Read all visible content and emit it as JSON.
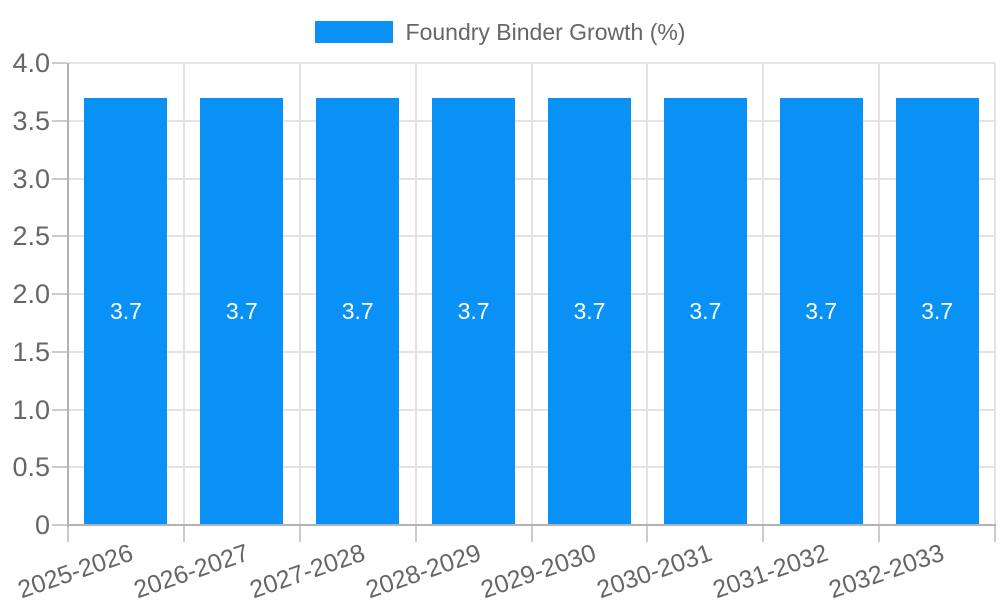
{
  "legend": {
    "label": "Foundry Binder Growth (%)"
  },
  "chart_data": {
    "type": "bar",
    "title": "Foundry Binder Growth (%)",
    "xlabel": "",
    "ylabel": "",
    "categories": [
      "2025-2026",
      "2026-2027",
      "2027-2028",
      "2028-2029",
      "2029-2030",
      "2030-2031",
      "2031-2032",
      "2032-2033"
    ],
    "series": [
      {
        "name": "Foundry Binder Growth (%)",
        "values": [
          3.7,
          3.7,
          3.7,
          3.7,
          3.7,
          3.7,
          3.7,
          3.7
        ]
      }
    ],
    "value_labels": [
      "3.7",
      "3.7",
      "3.7",
      "3.7",
      "3.7",
      "3.7",
      "3.7",
      "3.7"
    ],
    "ylim": [
      0,
      4.0
    ],
    "y_tick_values": [
      0,
      0.5,
      1.0,
      1.5,
      2.0,
      2.5,
      3.0,
      3.5,
      4.0
    ],
    "y_tick_labels": [
      "0",
      "0.5",
      "1.0",
      "1.5",
      "2.0",
      "2.5",
      "3.0",
      "3.5",
      "4.0"
    ],
    "grid": true,
    "legend_position": "top"
  },
  "colors": {
    "bar": "#0a91f5",
    "grid": "#e3e3e3",
    "axis": "#b3b3b3",
    "tick": "#cccccc",
    "text": "#666666",
    "value_label": "#ffffff",
    "background": "#ffffff"
  }
}
